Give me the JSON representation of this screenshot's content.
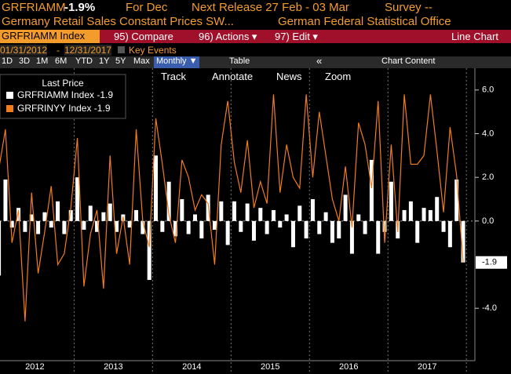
{
  "header": {
    "ticker": "GRFRIAMM",
    "change": "-1.9%",
    "period": "For Dec",
    "release": "Next Release 27 Feb - 03 Mar",
    "survey": "Survey --",
    "description": "Germany Retail Sales Constant Prices SW...",
    "source": "German Federal Statistical Office"
  },
  "menu": {
    "security": "GRFRIAMM Index",
    "compare": "95) Compare",
    "actions": "96) Actions ▾",
    "edit": "97) Edit ▾",
    "view": "Line Chart"
  },
  "range": {
    "start": "01/31/2012",
    "sep": "-",
    "end": "12/31/2017",
    "events": "Key Events"
  },
  "periods": [
    "1D",
    "3D",
    "1M",
    "6M",
    "YTD",
    "1Y",
    "5Y",
    "Max"
  ],
  "frequency": "Monthly ▼",
  "table": "Table",
  "collapse": "«",
  "content": "Chart Content",
  "tools": [
    "Track",
    "Annotate",
    "News",
    "Zoom"
  ],
  "chart_data": {
    "type": "bar+line",
    "legend_title": "Last Price",
    "last_tag": {
      "value": -1.9,
      "label": "-1.9"
    },
    "x_labels": [
      "2012",
      "2013",
      "2014",
      "2015",
      "2016",
      "2017"
    ],
    "ylim": [
      -6.4,
      7.0
    ],
    "yticks": [
      {
        "value": 6,
        "label": "6.0"
      },
      {
        "value": 4,
        "label": "4.0"
      },
      {
        "value": 2,
        "label": "2.0"
      },
      {
        "value": 0,
        "label": "0.0"
      },
      {
        "value": -4,
        "label": "-4.0"
      }
    ],
    "series": [
      {
        "name": "GRFRIAMM Index -1.9",
        "type": "bar",
        "color": "#ffffff",
        "values": [
          -2.5,
          1.9,
          -0.3,
          0.6,
          -0.5,
          0.3,
          -0.6,
          0.4,
          -0.3,
          0.9,
          -0.6,
          0.5,
          2.0,
          -0.4,
          0.7,
          -0.5,
          0.4,
          0.8,
          -0.5,
          0.3,
          -0.3,
          0.5,
          -0.6,
          -2.7,
          3.0,
          -0.5,
          1.8,
          -0.7,
          1.0,
          -0.6,
          0.3,
          -0.8,
          1.2,
          -0.4,
          0.9,
          -1.1,
          0.9,
          -0.5,
          0.8,
          -0.9,
          0.6,
          -0.6,
          0.5,
          -0.3,
          0.3,
          -1.2,
          0.7,
          -0.8,
          1.0,
          -0.6,
          0.4,
          -1.0,
          -0.8,
          1.2,
          -1.5,
          0.3,
          -0.6,
          2.8,
          -1.5,
          -0.5,
          1.8,
          -0.8,
          0.5,
          0.9,
          -1.0,
          0.6,
          0.5,
          1.1,
          -0.5,
          -1.2,
          1.9,
          -1.9
        ]
      },
      {
        "name": "GRFRINYY Index -1.9",
        "type": "line",
        "color": "#f07c1e",
        "values": [
          2.4,
          4.2,
          -1.0,
          0.5,
          -4.6,
          1.3,
          -2.4,
          -0.5,
          1.6,
          -2.0,
          -1.5,
          0.6,
          3.8,
          -3.0,
          -0.6,
          0.5,
          -3.1,
          3.0,
          -1.5,
          0.2,
          -2.0,
          4.2,
          0.0,
          -1.2,
          4.7,
          2.6,
          0.3,
          -1.0,
          2.8,
          2.0,
          0.5,
          1.2,
          0.8,
          -2.0,
          3.5,
          5.5,
          2.7,
          1.3,
          3.7,
          0.6,
          1.8,
          0.8,
          5.8,
          1.3,
          3.5,
          2.0,
          1.5,
          5.8,
          2.0,
          5.0,
          3.0,
          1.0,
          0.0,
          2.5,
          -0.3,
          4.5,
          3.5,
          1.5,
          5.5,
          -1.0,
          3.5,
          -0.5,
          5.8,
          2.6,
          2.6,
          3.0,
          5.8,
          3.2,
          0.4,
          4.3,
          2.1,
          -1.9
        ]
      }
    ]
  }
}
